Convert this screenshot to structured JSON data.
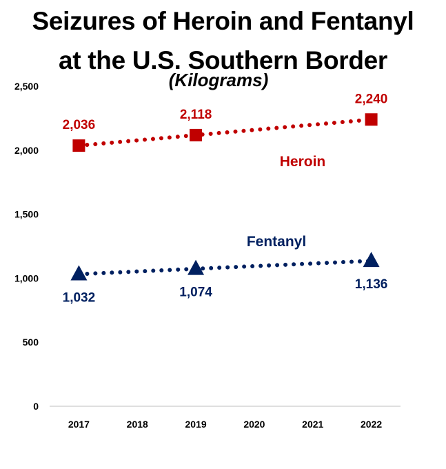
{
  "chart_data": {
    "type": "line",
    "title": "Seizures of Heroin and Fentanyl at the U.S. Southern Border",
    "title_lines": [
      "Seizures of Heroin and Fentanyl",
      "at the U.S. Southern Border"
    ],
    "subtitle": "(Kilograms)",
    "xlabel": "",
    "ylabel": "",
    "x": [
      "2017",
      "2018",
      "2019",
      "2020",
      "2021",
      "2022"
    ],
    "ylim": [
      0,
      2500
    ],
    "yticks": [
      0,
      500,
      1000,
      1500,
      2000,
      2500
    ],
    "ytick_labels": [
      "0",
      "500",
      "1,000",
      "1,500",
      "2,000",
      "2,500"
    ],
    "grid": false,
    "legend": "none",
    "series": [
      {
        "name": "Heroin",
        "color": "#c00000",
        "marker": "square",
        "line_style": "dotted",
        "points": [
          {
            "x": "2017",
            "y": 2036,
            "label": "2,036"
          },
          {
            "x": "2019",
            "y": 2118,
            "label": "2,118"
          },
          {
            "x": "2022",
            "y": 2240,
            "label": "2,240"
          }
        ]
      },
      {
        "name": "Fentanyl",
        "color": "#002060",
        "marker": "triangle",
        "line_style": "dotted",
        "points": [
          {
            "x": "2017",
            "y": 1032,
            "label": "1,032"
          },
          {
            "x": "2019",
            "y": 1074,
            "label": "1,074"
          },
          {
            "x": "2022",
            "y": 1136,
            "label": "1,136"
          }
        ]
      }
    ]
  }
}
